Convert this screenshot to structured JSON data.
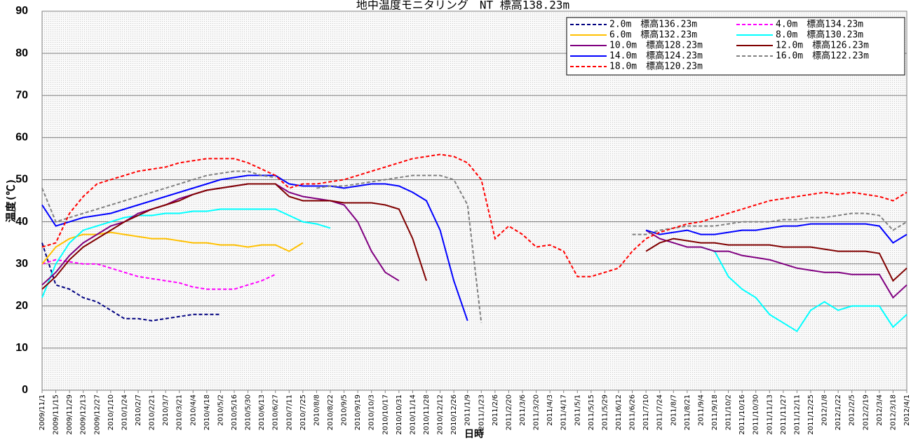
{
  "chart_data": {
    "type": "line",
    "title": "地中温度モニタリング　NT 標高138.23m",
    "x_label": "日時",
    "y_label": "温度(℃)",
    "ylim": [
      0,
      90
    ],
    "yticks": [
      0,
      10,
      20,
      30,
      40,
      50,
      60,
      70,
      80,
      90
    ],
    "grid": true,
    "legend": "top-right",
    "x": [
      "2009/11/1",
      "2009/11/15",
      "2009/11/29",
      "2009/12/13",
      "2009/12/27",
      "2010/1/10",
      "2010/1/24",
      "2010/2/7",
      "2010/2/21",
      "2010/3/7",
      "2010/3/21",
      "2010/4/4",
      "2010/4/18",
      "2010/5/2",
      "2010/5/16",
      "2010/5/30",
      "2010/6/13",
      "2010/6/27",
      "2010/7/11",
      "2010/7/25",
      "2010/8/8",
      "2010/8/22",
      "2010/9/5",
      "2010/9/19",
      "2010/10/3",
      "2010/10/17",
      "2010/10/31",
      "2010/11/14",
      "2010/11/28",
      "2010/12/12",
      "2010/12/26",
      "2011/1/9",
      "2011/1/23",
      "2011/2/6",
      "2011/2/20",
      "2011/3/6",
      "2011/3/20",
      "2011/4/3",
      "2011/4/17",
      "2011/5/1",
      "2011/5/15",
      "2011/5/29",
      "2011/6/12",
      "2011/6/26",
      "2011/7/10",
      "2011/7/24",
      "2011/8/7",
      "2011/8/21",
      "2011/9/4",
      "2011/9/18",
      "2011/10/2",
      "2011/10/16",
      "2011/10/30",
      "2011/11/13",
      "2011/11/27",
      "2011/12/11",
      "2011/12/25",
      "2012/1/8",
      "2012/1/22",
      "2012/2/5",
      "2012/2/19",
      "2012/3/4",
      "2012/3/18",
      "2012/4/1"
    ],
    "series": [
      {
        "name": "2.0m　標高136.23m",
        "color": "#000080",
        "dash": true,
        "values": [
          35,
          25,
          24,
          22,
          21,
          19,
          17,
          17,
          16.5,
          17,
          17.5,
          18,
          18,
          18,
          null,
          null,
          null,
          null,
          null,
          null,
          null,
          null,
          null,
          null,
          null,
          null,
          null,
          null,
          null,
          null,
          null,
          null,
          null,
          null,
          null,
          null,
          null,
          null,
          null,
          null,
          null,
          null,
          null,
          null,
          null,
          null,
          null,
          null,
          null,
          null,
          null,
          null,
          null,
          null,
          null,
          null,
          null,
          null,
          null,
          null,
          null,
          null,
          null,
          null
        ]
      },
      {
        "name": "4.0m　標高134.23m",
        "color": "#ff00ff",
        "dash": true,
        "values": [
          30,
          31,
          30.5,
          30,
          30,
          29,
          28,
          27,
          26.5,
          26,
          25.5,
          24.5,
          24,
          24,
          24,
          25,
          26,
          27.5,
          null,
          null,
          null,
          null,
          null,
          null,
          null,
          null,
          null,
          null,
          null,
          null,
          null,
          null,
          null,
          null,
          null,
          null,
          null,
          null,
          null,
          null,
          null,
          null,
          null,
          null,
          null,
          null,
          null,
          null,
          null,
          null,
          null,
          null,
          null,
          null,
          null,
          null,
          null,
          null,
          null,
          null,
          null,
          null,
          null,
          null
        ]
      },
      {
        "name": "6.0m　標高132.23m",
        "color": "#ffc000",
        "dash": false,
        "values": [
          30,
          34,
          36,
          37,
          37,
          37.5,
          37,
          36.5,
          36,
          36,
          35.5,
          35,
          35,
          34.5,
          34.5,
          34,
          34.5,
          34.5,
          33,
          35,
          null,
          null,
          null,
          null,
          null,
          null,
          null,
          null,
          null,
          null,
          null,
          null,
          null,
          null,
          null,
          null,
          null,
          null,
          null,
          null,
          null,
          null,
          null,
          null,
          null,
          null,
          null,
          null,
          null,
          null,
          null,
          null,
          null,
          null,
          null,
          null,
          null,
          null,
          null,
          null,
          null,
          null,
          null,
          null
        ]
      },
      {
        "name": "8.0m　標高130.23m",
        "color": "#00ffff",
        "dash": false,
        "values": [
          22,
          30,
          35,
          38,
          39,
          40,
          41,
          41.5,
          41.5,
          42,
          42,
          42.5,
          42.5,
          43,
          43,
          43,
          43,
          43,
          41.5,
          40,
          39.5,
          38.5,
          null,
          null,
          null,
          null,
          null,
          null,
          null,
          null,
          null,
          null,
          null,
          null,
          null,
          null,
          null,
          null,
          null,
          null,
          null,
          null,
          null,
          null,
          null,
          null,
          null,
          null,
          34,
          33,
          27,
          24,
          22,
          18,
          16,
          14,
          19,
          21,
          19,
          20,
          20,
          20,
          15,
          18
        ]
      },
      {
        "name": "10.0m　標高128.23m",
        "color": "#800080",
        "dash": false,
        "values": [
          25,
          28,
          32,
          35,
          37,
          39,
          40,
          42,
          43,
          44,
          45.5,
          46.5,
          47.5,
          48,
          48.5,
          49,
          49,
          49,
          47,
          46,
          45.5,
          45,
          44,
          40,
          33,
          28,
          26,
          null,
          null,
          null,
          null,
          null,
          null,
          null,
          null,
          null,
          null,
          null,
          null,
          null,
          null,
          null,
          null,
          null,
          38,
          36,
          35,
          34,
          34,
          33,
          33,
          32,
          31.5,
          31,
          30,
          29,
          28.5,
          28,
          28,
          27.5,
          27.5,
          27.5,
          22,
          25
        ]
      },
      {
        "name": "12.0m　標高126.23m",
        "color": "#800000",
        "dash": false,
        "values": [
          24,
          27,
          31,
          34,
          36,
          38,
          40,
          41.5,
          43,
          44,
          45,
          46.5,
          47.5,
          48,
          48.5,
          49,
          49,
          49,
          46,
          45,
          45,
          45,
          44.5,
          44.5,
          44.5,
          44,
          43,
          36,
          26,
          null,
          null,
          null,
          null,
          null,
          null,
          null,
          null,
          null,
          null,
          null,
          null,
          null,
          null,
          null,
          33,
          35,
          36,
          35.5,
          35,
          35,
          34.5,
          34.5,
          34.5,
          34.5,
          34,
          34,
          34,
          33.5,
          33,
          33,
          33,
          32.5,
          26,
          29
        ]
      },
      {
        "name": "14.0m　標高124.23m",
        "color": "#0000ff",
        "dash": false,
        "values": [
          44,
          39,
          40,
          41,
          41.5,
          42,
          43,
          44,
          45,
          46,
          47,
          48,
          49,
          50,
          50.5,
          51,
          51,
          51,
          49,
          48.5,
          48.5,
          48.5,
          48,
          48.5,
          49,
          49,
          48.5,
          47,
          45,
          38,
          26,
          16.5,
          null,
          null,
          null,
          null,
          null,
          null,
          null,
          null,
          null,
          null,
          null,
          null,
          38,
          37,
          37.5,
          38,
          37,
          37,
          37.5,
          38,
          38,
          38.5,
          39,
          39,
          39.5,
          39.5,
          39.5,
          39.5,
          39.5,
          39,
          35,
          37
        ]
      },
      {
        "name": "16.0m　標高122.23m",
        "color": "#808080",
        "dash": true,
        "values": [
          48,
          40,
          41,
          42,
          43,
          44,
          45,
          46,
          47,
          48,
          49,
          50,
          51,
          51.5,
          52,
          52,
          51,
          50.5,
          null,
          null,
          48,
          48.5,
          48.5,
          49,
          49.5,
          50,
          50.5,
          51,
          51,
          51,
          50,
          44,
          16,
          null,
          null,
          null,
          null,
          null,
          null,
          null,
          null,
          null,
          null,
          37,
          37,
          38,
          38.5,
          39,
          39,
          39,
          39.5,
          40,
          40,
          40,
          40.5,
          40.5,
          41,
          41,
          41.5,
          42,
          42,
          41.5,
          38,
          40
        ]
      },
      {
        "name": "18.0m　標高120.23m",
        "color": "#ff0000",
        "dash": true,
        "values": [
          34,
          35,
          42,
          46,
          49,
          50,
          51,
          52,
          52.5,
          53,
          54,
          54.5,
          55,
          55,
          55,
          54,
          52.5,
          51,
          48,
          49,
          49,
          49.5,
          50,
          51,
          52,
          53,
          54,
          55,
          55.5,
          56,
          55.5,
          54,
          50,
          36,
          39,
          37,
          34,
          34.5,
          33,
          27,
          27,
          28,
          29,
          33,
          36,
          37.5,
          38.5,
          39.5,
          40,
          41,
          42,
          43,
          44,
          45,
          45.5,
          46,
          46.5,
          47,
          46.5,
          47,
          46.5,
          46,
          45,
          47
        ]
      }
    ]
  }
}
